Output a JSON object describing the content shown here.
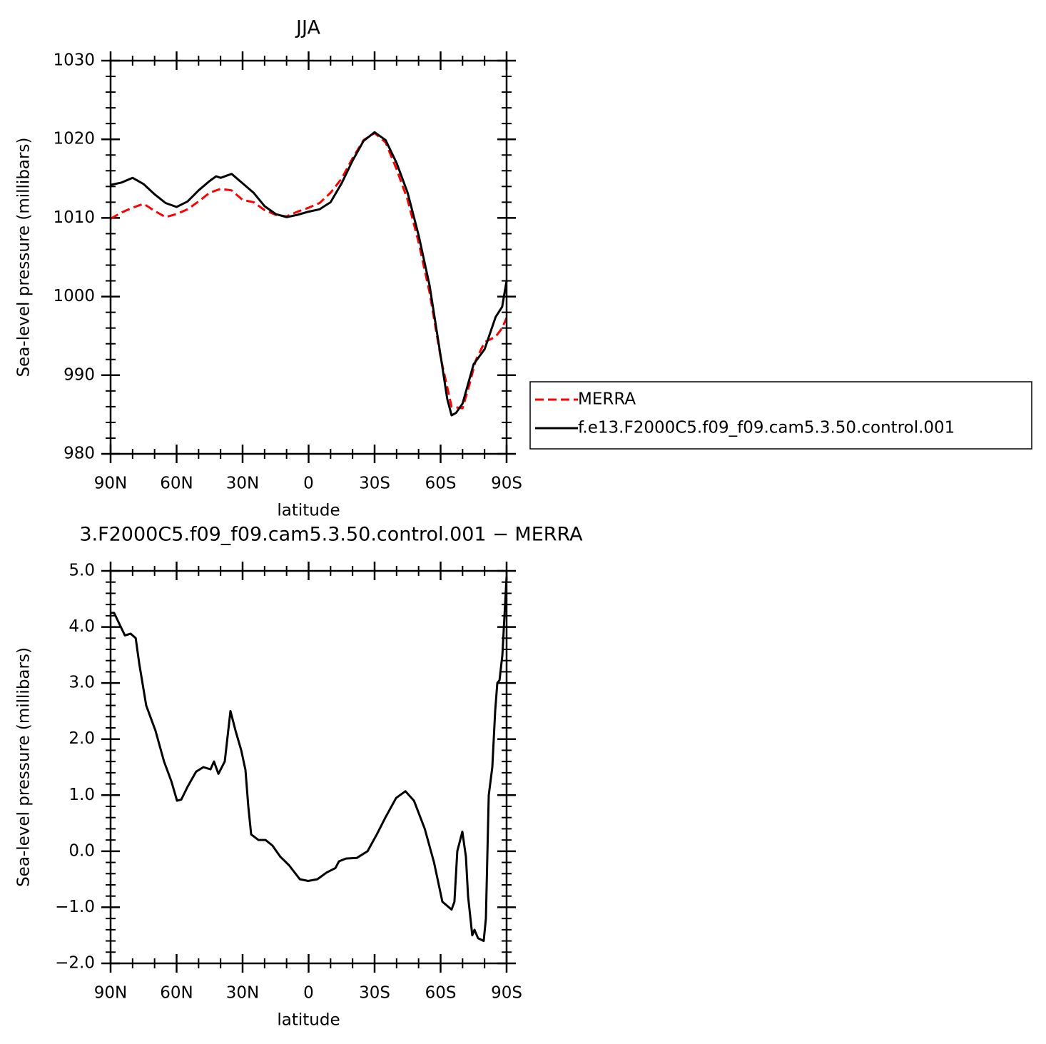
{
  "chart_data": [
    {
      "type": "line",
      "title": "JJA",
      "xlabel": "latitude",
      "ylabel": "Sea-level pressure (millibars)",
      "xlim": [
        90,
        -90
      ],
      "xticks": [
        {
          "value": 90,
          "label": "90N"
        },
        {
          "value": 60,
          "label": "60N"
        },
        {
          "value": 30,
          "label": "30N"
        },
        0,
        {
          "value": -30,
          "label": "30S"
        },
        {
          "value": -60,
          "label": "60S"
        },
        {
          "value": -90,
          "label": "90S"
        }
      ],
      "ylim": [
        980,
        1030
      ],
      "yticks": [
        980,
        990,
        1000,
        1010,
        1020,
        1030
      ],
      "legend": "right",
      "series": [
        {
          "name": "MERRA",
          "color": "#ff0000",
          "style": "dashed",
          "x": [
            90,
            85,
            80,
            75,
            70,
            65,
            60,
            55,
            50,
            45,
            40,
            35,
            30,
            25,
            20,
            15,
            10,
            5,
            0,
            -5,
            -10,
            -15,
            -20,
            -25,
            -30,
            -35,
            -40,
            -45,
            -50,
            -55,
            -60,
            -65,
            -70,
            -73,
            -76,
            -80,
            -85,
            -88,
            -90
          ],
          "values": [
            1009.9,
            1010.7,
            1011.3,
            1011.8,
            1010.9,
            1010.1,
            1010.5,
            1011.1,
            1012.1,
            1013.2,
            1013.7,
            1013.5,
            1012.3,
            1012.0,
            1011.0,
            1010.4,
            1010.2,
            1010.8,
            1011.3,
            1011.9,
            1013.2,
            1015.0,
            1017.6,
            1019.9,
            1020.8,
            1019.6,
            1016.2,
            1012.3,
            1006.9,
            1000.5,
            992.3,
            986.0,
            985.8,
            988.7,
            991.9,
            994.2,
            994.9,
            996.0,
            997.3
          ]
        },
        {
          "name": "f.e13.F2000C5.f09_f09.cam5.3.50.control.001",
          "color": "#000000",
          "style": "solid",
          "x": [
            90,
            85,
            80,
            75,
            70,
            65,
            60,
            55,
            50,
            45,
            42,
            40,
            35,
            30,
            25,
            20,
            15,
            10,
            5,
            0,
            -5,
            -10,
            -15,
            -20,
            -25,
            -30,
            -35,
            -40,
            -45,
            -50,
            -55,
            -60,
            -63,
            -65,
            -67,
            -70,
            -75,
            -80,
            -85,
            -88,
            -90
          ],
          "values": [
            1014.2,
            1014.5,
            1015.1,
            1014.3,
            1013.0,
            1011.9,
            1011.4,
            1012.1,
            1013.5,
            1014.7,
            1015.3,
            1015.1,
            1015.6,
            1014.4,
            1013.2,
            1011.5,
            1010.5,
            1010.1,
            1010.4,
            1010.8,
            1011.1,
            1012.0,
            1014.4,
            1017.3,
            1019.8,
            1020.9,
            1019.9,
            1017.0,
            1013.2,
            1007.8,
            1001.4,
            992.5,
            987.0,
            984.9,
            985.2,
            986.4,
            991.4,
            993.3,
            997.4,
            998.7,
            1002.0
          ]
        }
      ]
    },
    {
      "type": "line",
      "title": "3.F2000C5.f09_f09.cam5.3.50.control.001 − MERRA",
      "xlabel": "latitude",
      "ylabel": "Sea-level pressure (millibars)",
      "xlim": [
        90,
        -90
      ],
      "xticks": [
        {
          "value": 90,
          "label": "90N"
        },
        {
          "value": 60,
          "label": "60N"
        },
        {
          "value": 30,
          "label": "30N"
        },
        0,
        {
          "value": -30,
          "label": "30S"
        },
        {
          "value": -60,
          "label": "60S"
        },
        {
          "value": -90,
          "label": "90S"
        }
      ],
      "ylim": [
        -2,
        5
      ],
      "yticks": [
        {
          "value": -2,
          "label": "−2.0"
        },
        {
          "value": -1,
          "label": "−1.0"
        },
        {
          "value": 0,
          "label": "0.0"
        },
        {
          "value": 1,
          "label": "1.0"
        },
        {
          "value": 2,
          "label": "2.0"
        },
        {
          "value": 3,
          "label": "3.0"
        },
        {
          "value": 4,
          "label": "4.0"
        },
        {
          "value": 5,
          "label": "5.0"
        }
      ],
      "series": [
        {
          "color": "#000000",
          "style": "solid",
          "x": [
            90,
            88.4,
            83.5,
            80.9,
            78.6,
            77,
            73.8,
            69.6,
            65.7,
            62.4,
            59.8,
            57.9,
            55,
            51.1,
            47.8,
            44.6,
            43,
            41,
            38.1,
            35.5,
            33.2,
            30.6,
            28.7,
            27.4,
            26.1,
            22.8,
            19.6,
            16.4,
            12.8,
            8.9,
            4,
            0.2,
            -4,
            -8.2,
            -12.2,
            -13.8,
            -17,
            -21.9,
            -26.8,
            -31,
            -34.9,
            -39.8,
            -44,
            -47.9,
            -52.8,
            -57,
            -60.8,
            -65,
            -66.3,
            -67.6,
            -69.9,
            -71.5,
            -72.5,
            -74.4,
            -75.4,
            -77,
            -79.6,
            -80.6,
            -81.9,
            -83.5,
            -84.8,
            -85.8,
            -86.8,
            -88.1,
            -90
          ],
          "values": [
            4.25,
            4.25,
            3.85,
            3.88,
            3.8,
            3.35,
            2.6,
            2.15,
            1.6,
            1.25,
            0.9,
            0.92,
            1.15,
            1.42,
            1.5,
            1.46,
            1.6,
            1.38,
            1.6,
            2.5,
            2.15,
            1.8,
            1.45,
            0.8,
            0.3,
            0.2,
            0.2,
            0.1,
            -0.1,
            -0.25,
            -0.5,
            -0.53,
            -0.5,
            -0.38,
            -0.3,
            -0.18,
            -0.13,
            -0.12,
            0.0,
            0.3,
            0.6,
            0.95,
            1.07,
            0.9,
            0.4,
            -0.2,
            -0.9,
            -1.04,
            -0.9,
            0.0,
            0.35,
            -0.1,
            -0.8,
            -1.5,
            -1.4,
            -1.55,
            -1.6,
            -1.2,
            1.0,
            1.5,
            2.5,
            3.0,
            3.05,
            3.5,
            4.9
          ]
        }
      ]
    }
  ]
}
